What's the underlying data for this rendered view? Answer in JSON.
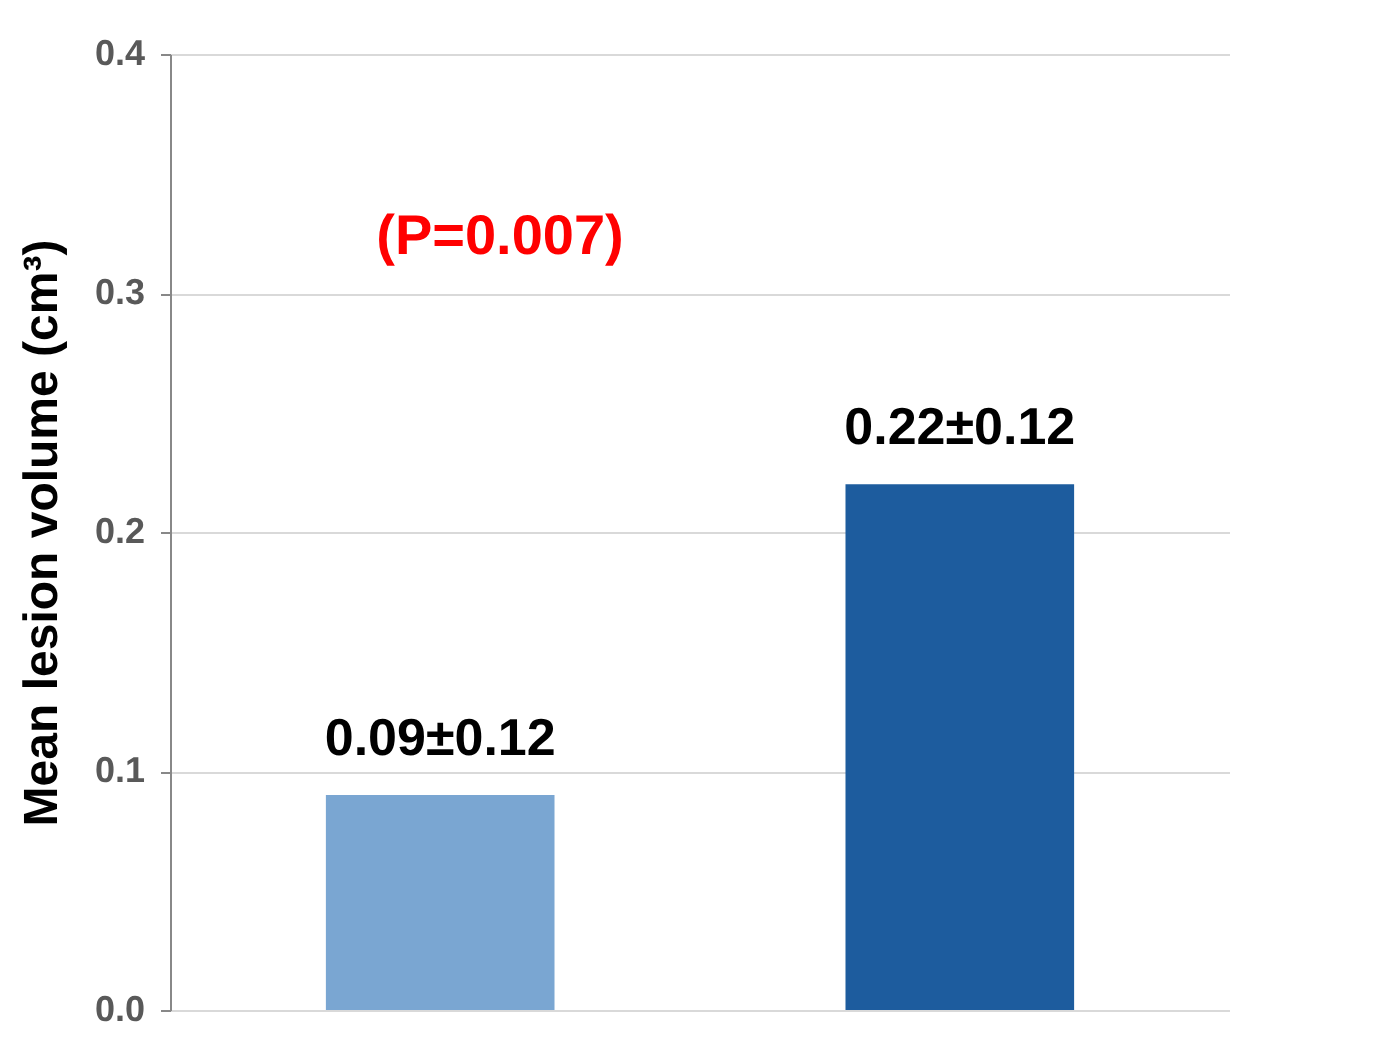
{
  "chart_data": {
    "type": "bar",
    "ylabel": "Mean lesion volume (cm³)",
    "categories": [
      null,
      null
    ],
    "series": [
      {
        "colors": [
          "#7aa6d2",
          "#1d5c9e"
        ],
        "values": [
          0.09,
          0.22
        ],
        "value_labels": [
          "0.09±0.12",
          "0.22±0.12"
        ]
      }
    ],
    "annotations": [
      "(P=0.007)"
    ],
    "ylim": [
      0,
      0.4
    ],
    "yticks": [
      {
        "value": 0,
        "label": "0.0"
      },
      0.1,
      0.2,
      0.3,
      0.4
    ],
    "grid": "y"
  }
}
